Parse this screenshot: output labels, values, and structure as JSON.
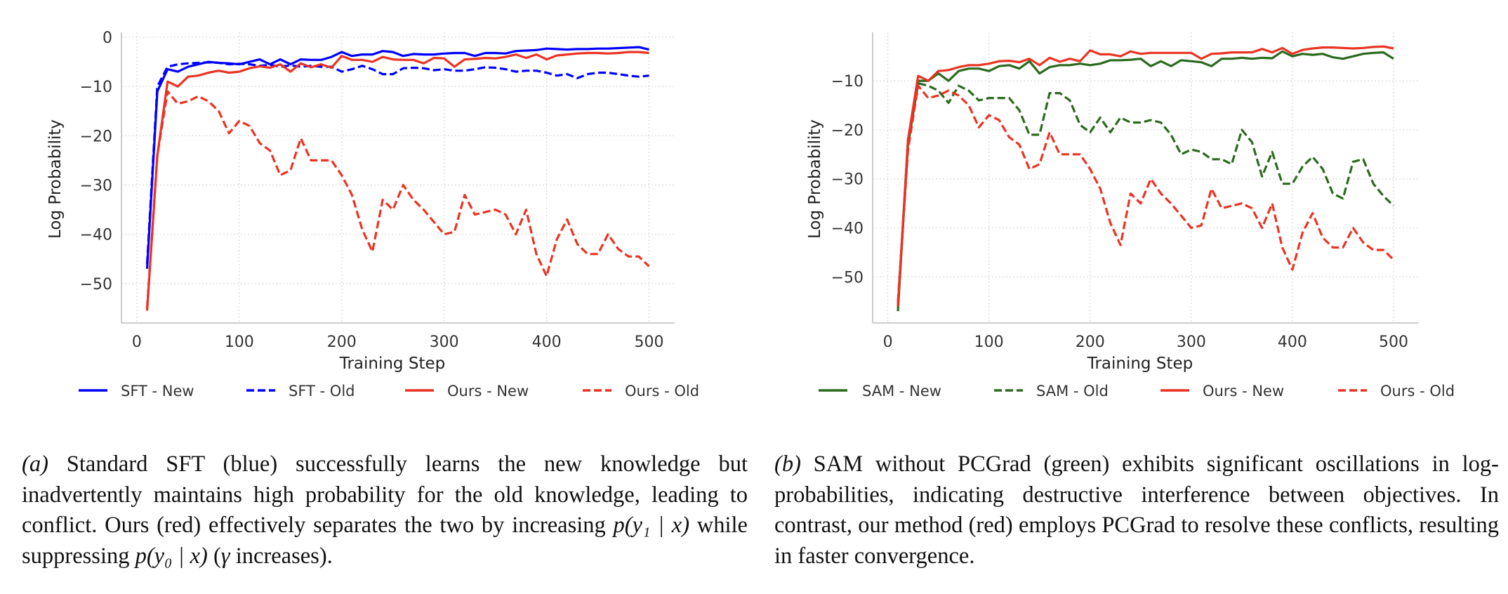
{
  "colors": {
    "blue": "#0000ff",
    "red": "#ea3323",
    "green": "#2b6a1e",
    "grid": "#d9d9d9",
    "spine": "#cccccc"
  },
  "chart_data": [
    {
      "id": "a",
      "type": "line",
      "xlabel": "Training Step",
      "ylabel": "Log Probability",
      "xlim": [
        -15,
        525
      ],
      "ylim": [
        -58,
        1
      ],
      "xticks": [
        0,
        100,
        200,
        300,
        400,
        500
      ],
      "yticks": [
        0,
        -10,
        -20,
        -30,
        -40,
        -50
      ],
      "xtick_labels": [
        "0",
        "100",
        "200",
        "300",
        "400",
        "500"
      ],
      "ytick_labels": [
        "0",
        "−10",
        "−20",
        "−30",
        "−40",
        "−50"
      ],
      "grid": true,
      "legend_placement": "bottom",
      "x": [
        10,
        20,
        30,
        40,
        50,
        60,
        70,
        80,
        90,
        100,
        110,
        120,
        130,
        140,
        150,
        160,
        170,
        180,
        190,
        200,
        210,
        220,
        230,
        240,
        250,
        260,
        270,
        280,
        290,
        300,
        310,
        320,
        330,
        340,
        350,
        360,
        370,
        380,
        390,
        400,
        410,
        420,
        430,
        440,
        450,
        460,
        470,
        480,
        490,
        500
      ],
      "series": [
        {
          "name": "SFT - New",
          "color": "#0000ff",
          "dash": false,
          "values": [
            -47,
            -11,
            -6.5,
            -7,
            -6,
            -5.5,
            -5,
            -5.2,
            -5.3,
            -5.5,
            -5,
            -4.5,
            -5.5,
            -4.5,
            -5.5,
            -4.5,
            -4.6,
            -4.6,
            -4,
            -3,
            -3.8,
            -3.5,
            -3.5,
            -2.8,
            -3,
            -3.8,
            -3.4,
            -3.5,
            -3.5,
            -3.3,
            -3.2,
            -3.2,
            -3.8,
            -3.2,
            -3.2,
            -3.3,
            -2.8,
            -2.7,
            -2.6,
            -2.3,
            -2.4,
            -2.5,
            -2.4,
            -2.4,
            -2.3,
            -2.3,
            -2.2,
            -2.1,
            -2,
            -2.5
          ]
        },
        {
          "name": "SFT - Old",
          "color": "#0000ff",
          "dash": true,
          "values": [
            -46,
            -10,
            -6,
            -5.5,
            -5.3,
            -5.2,
            -5.1,
            -5.2,
            -5.5,
            -5.4,
            -5.5,
            -5.8,
            -5.6,
            -6,
            -5.7,
            -6,
            -5.8,
            -6,
            -6,
            -7,
            -6.5,
            -5.8,
            -6.5,
            -7.5,
            -7.5,
            -6.3,
            -6.2,
            -6.3,
            -6.7,
            -6.5,
            -6.8,
            -6.8,
            -6.5,
            -6.1,
            -6.2,
            -6.5,
            -7,
            -6.8,
            -6.8,
            -7.2,
            -7.8,
            -7.5,
            -8.3,
            -7.5,
            -7.2,
            -7.2,
            -7.5,
            -7.8,
            -8,
            -7.8
          ]
        },
        {
          "name": "Ours - New",
          "color": "#ea3323",
          "dash": false,
          "values": [
            -55.5,
            -24,
            -9,
            -10,
            -8,
            -7.8,
            -7.2,
            -6.8,
            -7.2,
            -7,
            -6.3,
            -5.9,
            -6.2,
            -5.5,
            -7,
            -5.3,
            -6.1,
            -5.5,
            -6.2,
            -3.8,
            -4.6,
            -4.6,
            -5,
            -4,
            -4.5,
            -4.6,
            -4.6,
            -5.3,
            -4.2,
            -4.3,
            -6,
            -4.5,
            -4.4,
            -4.2,
            -4.3,
            -4,
            -3.5,
            -4.2,
            -3.5,
            -4.5,
            -3.7,
            -3.5,
            -3.3,
            -3.2,
            -3.2,
            -3.3,
            -3.2,
            -3,
            -3,
            -3.2
          ]
        },
        {
          "name": "Ours - Old",
          "color": "#ea3323",
          "dash": true,
          "values": [
            -55,
            -24,
            -11,
            -13.5,
            -13,
            -12,
            -13,
            -15,
            -19.5,
            -17,
            -18,
            -21.5,
            -23,
            -28,
            -27,
            -20.5,
            -25,
            -25,
            -25,
            -28,
            -32,
            -39,
            -43.5,
            -33,
            -35,
            -30,
            -33,
            -35,
            -37.5,
            -40,
            -39.5,
            -32,
            -36,
            -35.5,
            -35,
            -36,
            -40,
            -35,
            -44,
            -48.5,
            -41,
            -37,
            -42,
            -44,
            -44,
            -40,
            -43,
            -44.5,
            -44.5,
            -46.5
          ]
        }
      ]
    },
    {
      "id": "b",
      "type": "line",
      "xlabel": "Training Step",
      "ylabel": "Log Probability",
      "xlim": [
        -15,
        525
      ],
      "ylim": [
        -59.4,
        -0.1
      ],
      "xticks": [
        0,
        100,
        200,
        300,
        400,
        500
      ],
      "yticks": [
        -10,
        -20,
        -30,
        -40,
        -50
      ],
      "xtick_labels": [
        "0",
        "100",
        "200",
        "300",
        "400",
        "500"
      ],
      "ytick_labels": [
        "−10",
        "−20",
        "−30",
        "−40",
        "−50"
      ],
      "grid": true,
      "legend_placement": "bottom",
      "x": [
        10,
        20,
        30,
        40,
        50,
        60,
        70,
        80,
        90,
        100,
        110,
        120,
        130,
        140,
        150,
        160,
        170,
        180,
        190,
        200,
        210,
        220,
        230,
        240,
        250,
        260,
        270,
        280,
        290,
        300,
        310,
        320,
        330,
        340,
        350,
        360,
        370,
        380,
        390,
        400,
        410,
        420,
        430,
        440,
        450,
        460,
        470,
        480,
        490,
        500
      ],
      "series": [
        {
          "name": "SAM - New",
          "color": "#2b6a1e",
          "dash": false,
          "values": [
            -57,
            -22,
            -10,
            -10,
            -8.5,
            -10,
            -8,
            -7.5,
            -7.5,
            -8,
            -7,
            -6.8,
            -7.5,
            -6,
            -8.5,
            -7.2,
            -6.8,
            -6.8,
            -6.5,
            -6.8,
            -6.5,
            -5.8,
            -5.8,
            -5.7,
            -5.5,
            -7,
            -6,
            -7,
            -5.8,
            -6,
            -6.2,
            -7,
            -5.5,
            -5.5,
            -5.3,
            -5.5,
            -5.3,
            -5.4,
            -4,
            -5,
            -4.5,
            -4.7,
            -4.5,
            -5.2,
            -5.5,
            -5,
            -4.5,
            -4.3,
            -4.2,
            -5.5
          ]
        },
        {
          "name": "SAM - Old",
          "color": "#2b6a1e",
          "dash": true,
          "values": [
            -56,
            -23,
            -10.5,
            -11,
            -12,
            -14.5,
            -11,
            -12,
            -14,
            -13.5,
            -13.5,
            -13.5,
            -16,
            -21,
            -21,
            -12.5,
            -12.5,
            -14,
            -19,
            -20.5,
            -17.5,
            -20.5,
            -17.5,
            -18.5,
            -18.5,
            -18,
            -18.5,
            -21,
            -25,
            -24,
            -24.5,
            -26,
            -26,
            -27,
            -20,
            -22.5,
            -29.5,
            -24.5,
            -31,
            -31,
            -27.5,
            -25.5,
            -28,
            -33,
            -34,
            -26.5,
            -26,
            -31,
            -33.5,
            -35.5
          ]
        },
        {
          "name": "Ours - New",
          "color": "#ea3323",
          "dash": false,
          "values": [
            -56,
            -22,
            -9,
            -10,
            -8,
            -7.8,
            -7.2,
            -6.8,
            -6.8,
            -6.5,
            -6,
            -5.9,
            -6.2,
            -5.5,
            -6.8,
            -5.3,
            -6.1,
            -5.5,
            -6,
            -3.8,
            -4.6,
            -4.6,
            -5,
            -4,
            -4.5,
            -4.3,
            -4.3,
            -4.3,
            -4.3,
            -4.3,
            -5.5,
            -4.5,
            -4.4,
            -4.2,
            -4.2,
            -4.2,
            -3.5,
            -4.2,
            -3.3,
            -4.5,
            -3.7,
            -3.4,
            -3.2,
            -3.2,
            -3.3,
            -3.4,
            -3.3,
            -3.1,
            -3,
            -3.4
          ]
        },
        {
          "name": "Ours - Old",
          "color": "#ea3323",
          "dash": true,
          "values": [
            -55,
            -24,
            -11,
            -13.5,
            -13,
            -12,
            -13,
            -15,
            -19.5,
            -17,
            -18,
            -21.5,
            -23,
            -28,
            -27,
            -20.5,
            -25,
            -25,
            -25,
            -28,
            -32,
            -39,
            -43.5,
            -33,
            -35,
            -30,
            -33,
            -35,
            -37.5,
            -40,
            -39.5,
            -32,
            -36,
            -35.5,
            -35,
            -36,
            -40,
            -35,
            -44,
            -48.5,
            -41,
            -37,
            -42,
            -44,
            -44,
            -40,
            -43,
            -44.5,
            -44.5,
            -46.5
          ]
        }
      ]
    }
  ],
  "captions": {
    "a": {
      "label": "(a)",
      "text_1": " Standard SFT (blue) successfully learns the new knowledge but inadvertently maintains high probability for the old knowledge, leading to conflict.  Ours (red) effectively separates the two by increasing ",
      "math_1": "p(y₁ | x)",
      "text_2": " while suppressing ",
      "math_2": "p(y₀ | x)",
      "text_3": " (",
      "math_3": "γ",
      "text_4": " increases)."
    },
    "b": {
      "label": "(b)",
      "text": " SAM without PCGrad (green) exhibits significant oscillations in log-probabilities, indicating destructive interference between objectives. In contrast, our method (red) employs PCGrad to resolve these conflicts, resulting in faster convergence."
    }
  }
}
